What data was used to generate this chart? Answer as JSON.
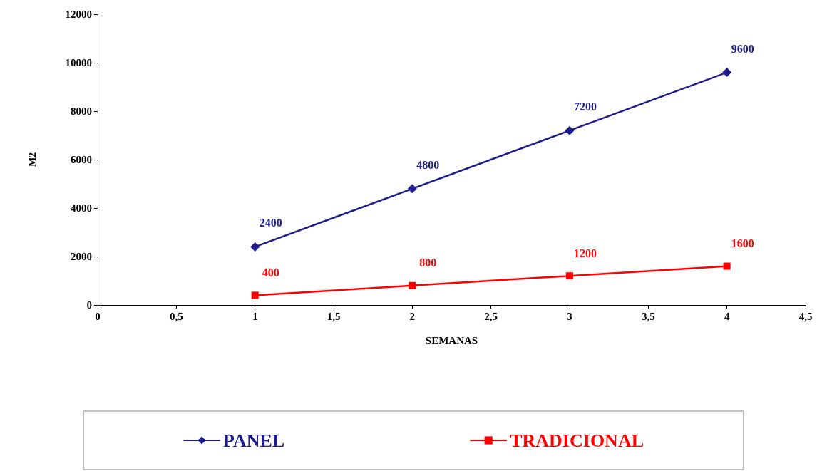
{
  "chart_data": {
    "type": "line",
    "xlabel": "SEMANAS",
    "ylabel": "M2",
    "x": [
      1,
      2,
      3,
      4
    ],
    "series": [
      {
        "name": "PANEL",
        "color": "#1c1c8c",
        "marker": "diamond",
        "values": [
          2400,
          4800,
          7200,
          9600
        ]
      },
      {
        "name": "TRADICIONAL",
        "color": "#ff0000",
        "marker": "square",
        "values": [
          400,
          800,
          1200,
          1600
        ]
      }
    ],
    "xlim": [
      0,
      4.5
    ],
    "xticks": [
      0,
      {
        "value": 0.5,
        "label": "0,5"
      },
      1,
      {
        "value": 1.5,
        "label": "1,5"
      },
      2,
      {
        "value": 2.5,
        "label": "2,5"
      },
      3,
      {
        "value": 3.5,
        "label": "3,5"
      },
      4,
      {
        "value": 4.5,
        "label": "4,5"
      }
    ],
    "ylim": [
      0,
      12000
    ],
    "yticks": [
      0,
      2000,
      4000,
      6000,
      8000,
      10000,
      12000
    ],
    "data_labels": true,
    "grid": false,
    "legend": "bottom",
    "line_style": "solid"
  }
}
